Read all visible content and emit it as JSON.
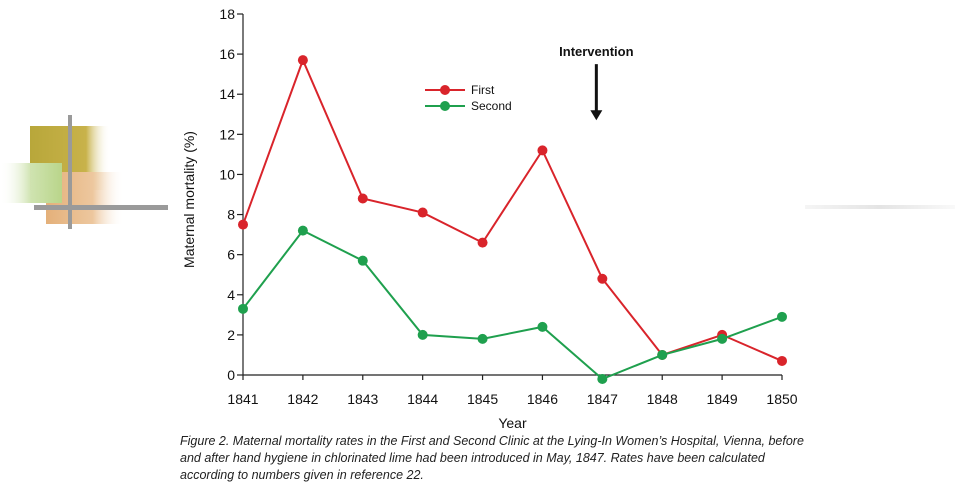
{
  "colors": {
    "first": "#d9242b",
    "second": "#1fa04e",
    "axis": "#222222"
  },
  "chart_data": {
    "type": "line",
    "title": "",
    "xlabel": "Year",
    "ylabel": "Maternal mortality (%)",
    "x": [
      1841,
      1842,
      1843,
      1844,
      1845,
      1846,
      1847,
      1848,
      1849,
      1850
    ],
    "ylim": [
      0,
      18
    ],
    "yticks": [
      0,
      2,
      4,
      6,
      8,
      10,
      12,
      14,
      16,
      18
    ],
    "grid": false,
    "legend_position": "top-center",
    "series": [
      {
        "name": "First",
        "color": "#d9242b",
        "values": [
          7.5,
          15.7,
          8.8,
          8.1,
          6.6,
          11.2,
          4.8,
          1.0,
          2.0,
          0.7
        ]
      },
      {
        "name": "Second",
        "color": "#1fa04e",
        "values": [
          3.3,
          7.2,
          5.7,
          2.0,
          1.8,
          2.4,
          -0.2,
          1.0,
          1.8,
          2.9
        ]
      }
    ],
    "annotations": [
      {
        "text": "Intervention",
        "x": 1846.9,
        "arrow_from_y": 15.5,
        "arrow_to_y": 12.7
      }
    ]
  },
  "caption": "Figure 2. Maternal mortality rates in the First and Second Clinic at the Lying-In Women’s Hospital, Vienna, before and after hand hygiene in chlorinated lime had been introduced in May, 1847. Rates have been calculated according to numbers given in reference 22."
}
